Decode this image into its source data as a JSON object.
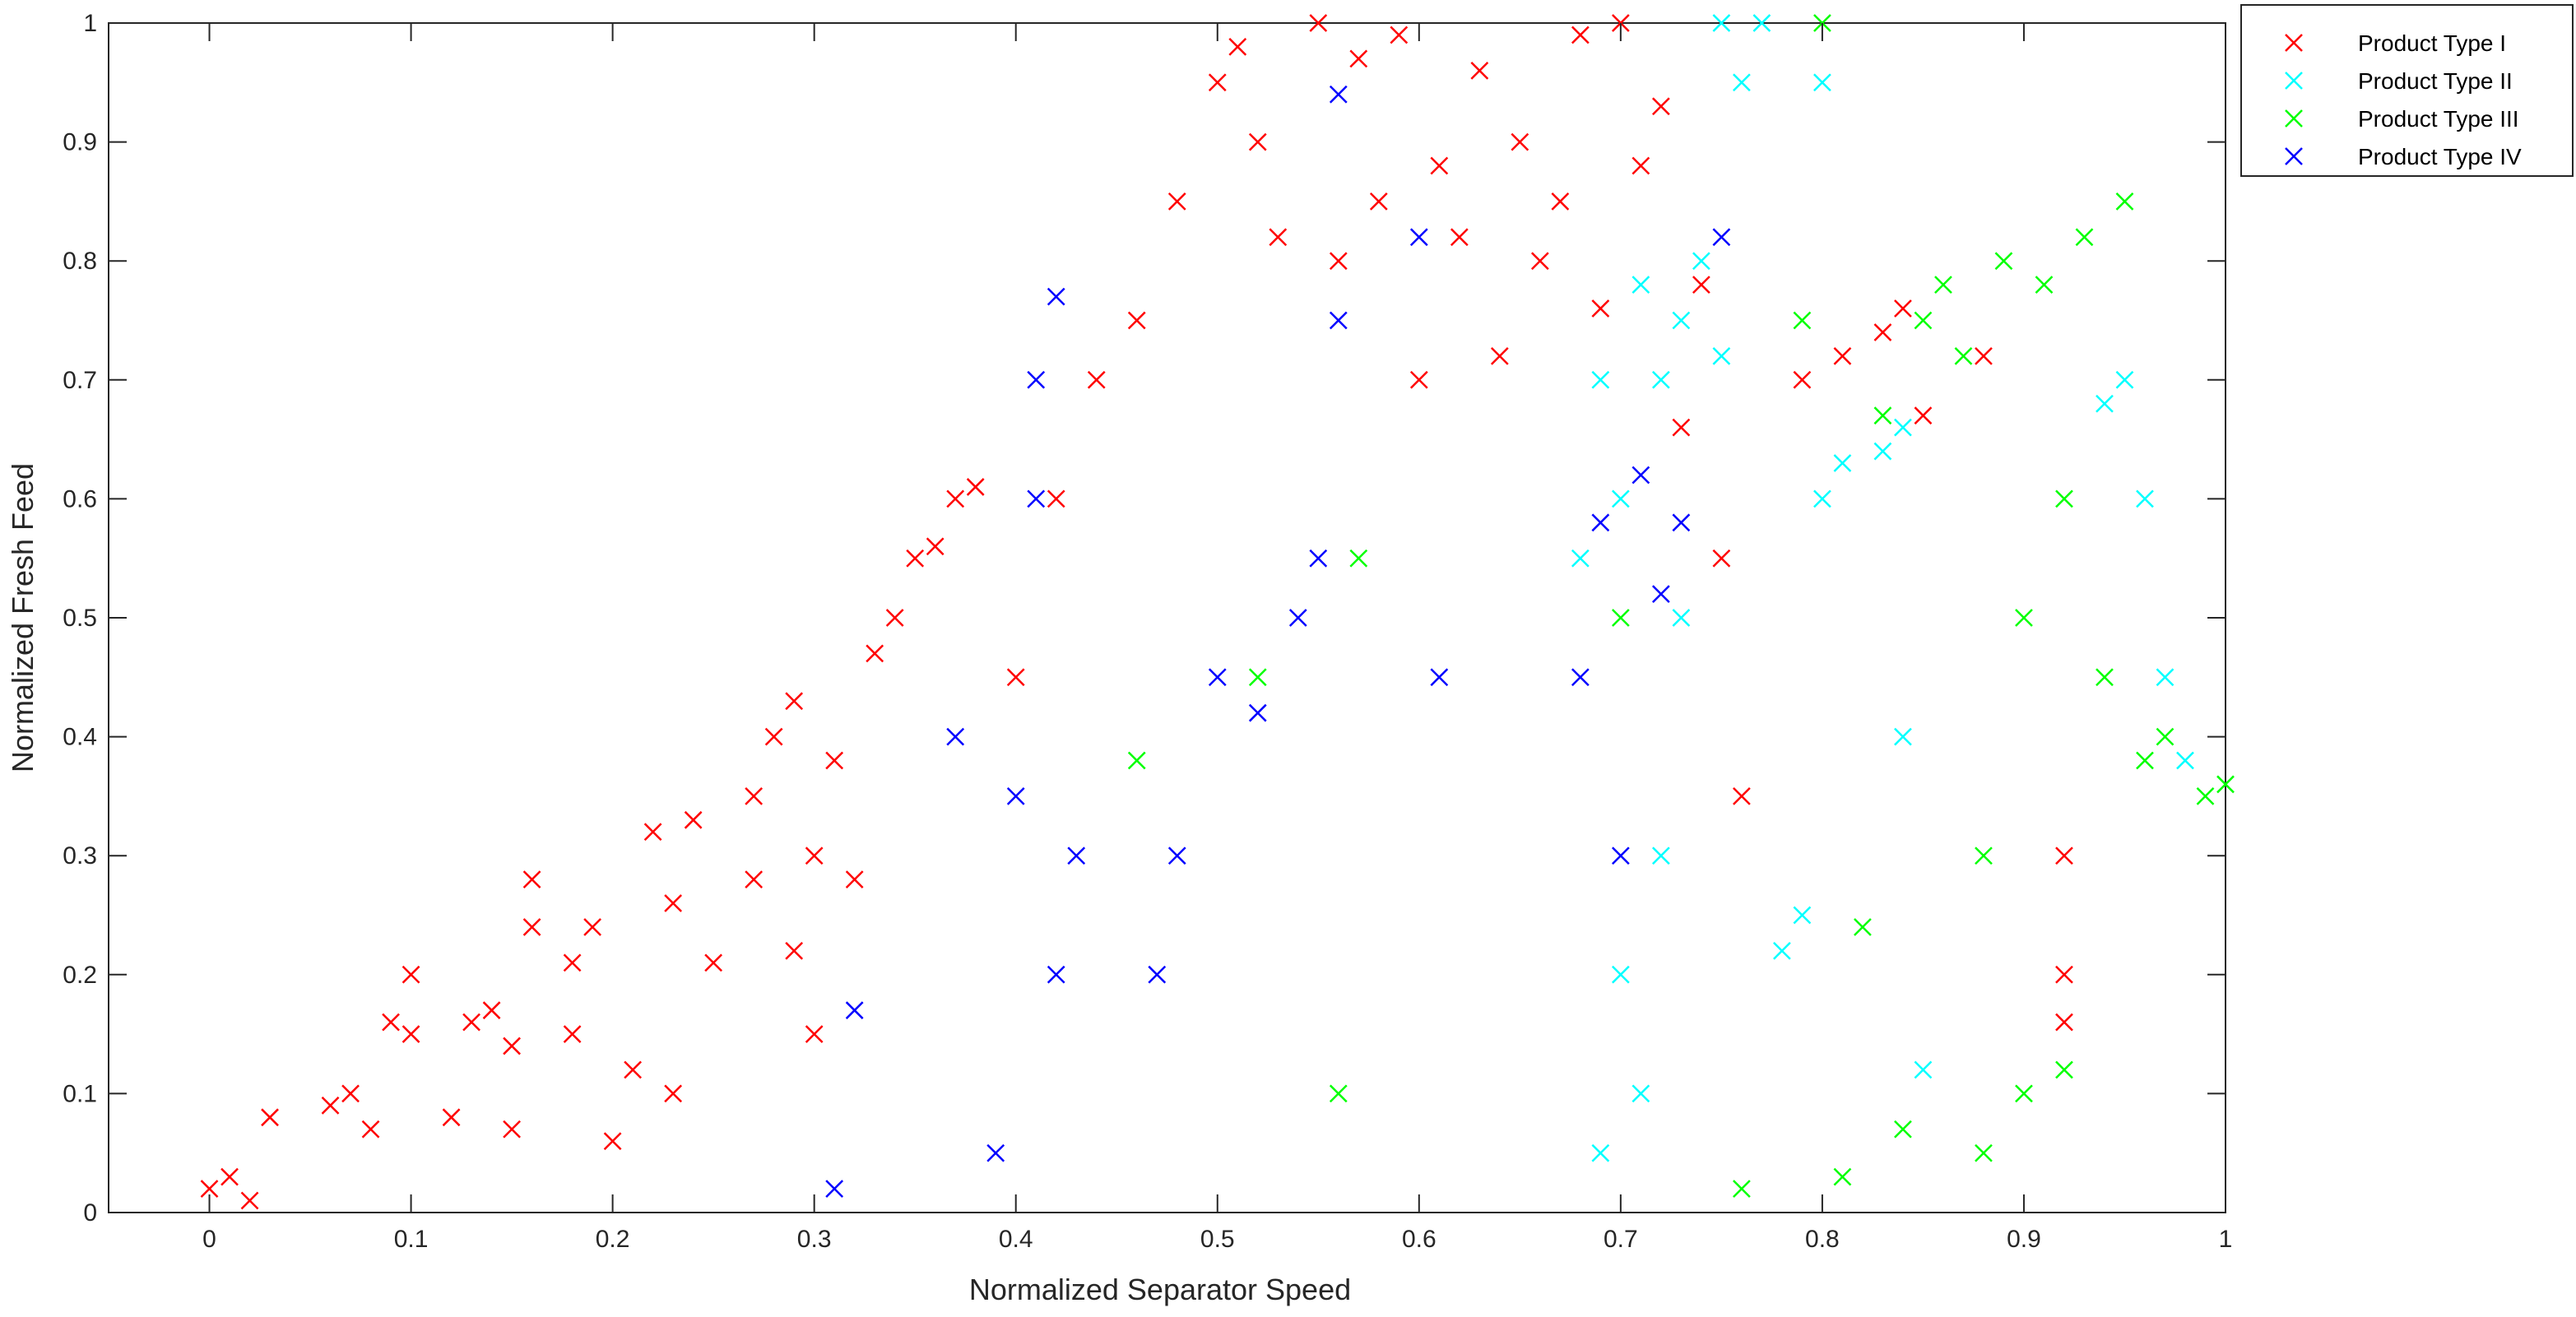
{
  "chart_data": {
    "type": "scatter",
    "title": "",
    "xlabel": "Normalized Separator Speed",
    "ylabel": "Normalized Fresh Feed",
    "xlim": [
      -0.05,
      1.0
    ],
    "ylim": [
      0,
      1
    ],
    "xticks": [
      "0",
      "0.1",
      "0.2",
      "0.3",
      "0.4",
      "0.5",
      "0.6",
      "0.7",
      "0.8",
      "0.9",
      "1"
    ],
    "yticks": [
      "0",
      "0.1",
      "0.2",
      "0.3",
      "0.4",
      "0.5",
      "0.6",
      "0.7",
      "0.8",
      "0.9",
      "1"
    ],
    "grid": false,
    "marker": "x",
    "legend_position": "outside-top-right",
    "series": [
      {
        "name": "Product Type I",
        "color": "#ff0000",
        "points": [
          [
            0.0,
            0.02
          ],
          [
            0.01,
            0.03
          ],
          [
            0.02,
            0.01
          ],
          [
            0.03,
            0.08
          ],
          [
            0.06,
            0.09
          ],
          [
            0.07,
            0.1
          ],
          [
            0.08,
            0.07
          ],
          [
            0.09,
            0.16
          ],
          [
            0.1,
            0.2
          ],
          [
            0.1,
            0.15
          ],
          [
            0.12,
            0.08
          ],
          [
            0.13,
            0.16
          ],
          [
            0.14,
            0.17
          ],
          [
            0.15,
            0.07
          ],
          [
            0.15,
            0.14
          ],
          [
            0.16,
            0.28
          ],
          [
            0.16,
            0.24
          ],
          [
            0.18,
            0.15
          ],
          [
            0.18,
            0.21
          ],
          [
            0.19,
            0.24
          ],
          [
            0.2,
            0.06
          ],
          [
            0.21,
            0.12
          ],
          [
            0.22,
            0.32
          ],
          [
            0.23,
            0.1
          ],
          [
            0.23,
            0.26
          ],
          [
            0.24,
            0.33
          ],
          [
            0.25,
            0.21
          ],
          [
            0.27,
            0.35
          ],
          [
            0.27,
            0.28
          ],
          [
            0.28,
            0.4
          ],
          [
            0.29,
            0.43
          ],
          [
            0.29,
            0.22
          ],
          [
            0.3,
            0.3
          ],
          [
            0.3,
            0.15
          ],
          [
            0.31,
            0.38
          ],
          [
            0.32,
            0.28
          ],
          [
            0.33,
            0.47
          ],
          [
            0.34,
            0.5
          ],
          [
            0.35,
            0.55
          ],
          [
            0.36,
            0.56
          ],
          [
            0.37,
            0.6
          ],
          [
            0.38,
            0.61
          ],
          [
            0.4,
            0.45
          ],
          [
            0.42,
            0.6
          ],
          [
            0.44,
            0.7
          ],
          [
            0.46,
            0.75
          ],
          [
            0.48,
            0.85
          ],
          [
            0.5,
            0.95
          ],
          [
            0.51,
            0.98
          ],
          [
            0.52,
            0.9
          ],
          [
            0.53,
            0.82
          ],
          [
            0.55,
            1.0
          ],
          [
            0.56,
            0.8
          ],
          [
            0.57,
            0.97
          ],
          [
            0.58,
            0.85
          ],
          [
            0.59,
            0.99
          ],
          [
            0.6,
            0.7
          ],
          [
            0.61,
            0.88
          ],
          [
            0.62,
            0.82
          ],
          [
            0.63,
            0.96
          ],
          [
            0.64,
            0.72
          ],
          [
            0.65,
            0.9
          ],
          [
            0.66,
            0.8
          ],
          [
            0.67,
            0.85
          ],
          [
            0.68,
            0.99
          ],
          [
            0.69,
            0.76
          ],
          [
            0.7,
            1.0
          ],
          [
            0.71,
            0.88
          ],
          [
            0.72,
            0.93
          ],
          [
            0.73,
            0.66
          ],
          [
            0.74,
            0.78
          ],
          [
            0.75,
            0.55
          ],
          [
            0.76,
            0.35
          ],
          [
            0.79,
            0.7
          ],
          [
            0.81,
            0.72
          ],
          [
            0.83,
            0.74
          ],
          [
            0.84,
            0.76
          ],
          [
            0.85,
            0.67
          ],
          [
            0.88,
            0.72
          ],
          [
            0.92,
            0.3
          ],
          [
            0.92,
            0.2
          ],
          [
            0.92,
            0.16
          ]
        ]
      },
      {
        "name": "Product Type II",
        "color": "#00ffff",
        "points": [
          [
            0.68,
            0.55
          ],
          [
            0.69,
            0.7
          ],
          [
            0.7,
            0.6
          ],
          [
            0.71,
            0.78
          ],
          [
            0.72,
            0.7
          ],
          [
            0.73,
            0.75
          ],
          [
            0.74,
            0.8
          ],
          [
            0.75,
            0.72
          ],
          [
            0.76,
            0.95
          ],
          [
            0.77,
            1.0
          ],
          [
            0.75,
            1.0
          ],
          [
            0.73,
            0.5
          ],
          [
            0.72,
            0.3
          ],
          [
            0.71,
            0.1
          ],
          [
            0.7,
            0.2
          ],
          [
            0.69,
            0.05
          ],
          [
            0.78,
            0.22
          ],
          [
            0.79,
            0.25
          ],
          [
            0.8,
            0.6
          ],
          [
            0.8,
            0.95
          ],
          [
            0.81,
            0.63
          ],
          [
            0.83,
            0.64
          ],
          [
            0.84,
            0.4
          ],
          [
            0.84,
            0.66
          ],
          [
            0.85,
            0.12
          ],
          [
            0.94,
            0.68
          ],
          [
            0.95,
            0.7
          ],
          [
            0.96,
            0.6
          ],
          [
            0.97,
            0.45
          ],
          [
            0.98,
            0.38
          ]
        ]
      },
      {
        "name": "Product Type III",
        "color": "#00ff00",
        "points": [
          [
            0.46,
            0.38
          ],
          [
            0.52,
            0.45
          ],
          [
            0.56,
            0.1
          ],
          [
            0.57,
            0.55
          ],
          [
            0.7,
            0.5
          ],
          [
            0.76,
            0.02
          ],
          [
            0.79,
            0.75
          ],
          [
            0.8,
            1.0
          ],
          [
            0.81,
            0.03
          ],
          [
            0.82,
            0.24
          ],
          [
            0.83,
            0.67
          ],
          [
            0.84,
            0.07
          ],
          [
            0.85,
            0.75
          ],
          [
            0.86,
            0.78
          ],
          [
            0.87,
            0.72
          ],
          [
            0.88,
            0.05
          ],
          [
            0.88,
            0.3
          ],
          [
            0.89,
            0.8
          ],
          [
            0.9,
            0.1
          ],
          [
            0.9,
            0.5
          ],
          [
            0.91,
            0.78
          ],
          [
            0.92,
            0.6
          ],
          [
            0.92,
            0.12
          ],
          [
            0.93,
            0.82
          ],
          [
            0.94,
            0.45
          ],
          [
            0.95,
            0.85
          ],
          [
            0.96,
            0.38
          ],
          [
            0.97,
            0.4
          ],
          [
            0.99,
            0.35
          ],
          [
            1.0,
            0.36
          ]
        ]
      },
      {
        "name": "Product Type IV",
        "color": "#0000ff",
        "points": [
          [
            0.31,
            0.02
          ],
          [
            0.32,
            0.17
          ],
          [
            0.37,
            0.4
          ],
          [
            0.39,
            0.05
          ],
          [
            0.4,
            0.35
          ],
          [
            0.41,
            0.6
          ],
          [
            0.42,
            0.77
          ],
          [
            0.41,
            0.7
          ],
          [
            0.42,
            0.2
          ],
          [
            0.43,
            0.3
          ],
          [
            0.47,
            0.2
          ],
          [
            0.48,
            0.3
          ],
          [
            0.5,
            0.45
          ],
          [
            0.52,
            0.42
          ],
          [
            0.54,
            0.5
          ],
          [
            0.55,
            0.55
          ],
          [
            0.56,
            0.94
          ],
          [
            0.56,
            0.75
          ],
          [
            0.6,
            0.82
          ],
          [
            0.61,
            0.45
          ],
          [
            0.68,
            0.45
          ],
          [
            0.69,
            0.58
          ],
          [
            0.7,
            0.3
          ],
          [
            0.71,
            0.62
          ],
          [
            0.72,
            0.52
          ],
          [
            0.73,
            0.58
          ],
          [
            0.75,
            0.82
          ]
        ]
      }
    ]
  }
}
